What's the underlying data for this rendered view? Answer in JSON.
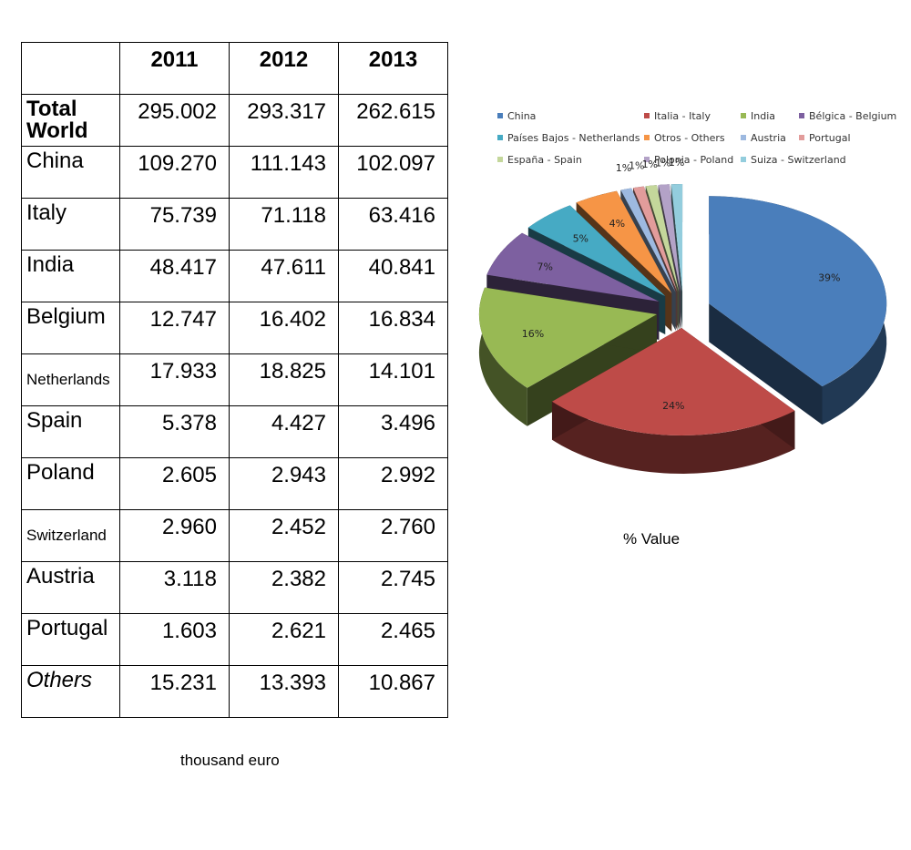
{
  "table": {
    "years": [
      "2011",
      "2012",
      "2013"
    ],
    "rows": [
      {
        "country": "Total World",
        "values": [
          "295.002",
          "293.317",
          "262.615"
        ],
        "style": "bold"
      },
      {
        "country": "China",
        "values": [
          "109.270",
          "111.143",
          "102.097"
        ],
        "style": "normal"
      },
      {
        "country": "Italy",
        "values": [
          "75.739",
          "71.118",
          "63.416"
        ],
        "style": "normal"
      },
      {
        "country": "India",
        "values": [
          "48.417",
          "47.611",
          "40.841"
        ],
        "style": "normal"
      },
      {
        "country": "Belgium",
        "values": [
          "12.747",
          "16.402",
          "16.834"
        ],
        "style": "normal"
      },
      {
        "country": "Netherlands",
        "values": [
          "17.933",
          "18.825",
          "14.101"
        ],
        "style": "small"
      },
      {
        "country": "Spain",
        "values": [
          "5.378",
          "4.427",
          "3.496"
        ],
        "style": "normal"
      },
      {
        "country": "Poland",
        "values": [
          "2.605",
          "2.943",
          "2.992"
        ],
        "style": "normal"
      },
      {
        "country": "Switzerland",
        "values": [
          "2.960",
          "2.452",
          "2.760"
        ],
        "style": "small"
      },
      {
        "country": "Austria",
        "values": [
          "3.118",
          "2.382",
          "2.745"
        ],
        "style": "normal"
      },
      {
        "country": "Portugal",
        "values": [
          "1.603",
          "2.621",
          "2.465"
        ],
        "style": "normal"
      },
      {
        "country": "Others",
        "values": [
          "15.231",
          "13.393",
          "10.867"
        ],
        "style": "italic"
      }
    ],
    "unit_note": "thousand euro"
  },
  "chart_data": {
    "type": "pie",
    "caption": "% Value",
    "legend_position": "top",
    "slices": [
      {
        "label": "China",
        "value": 39,
        "data_label": "39%",
        "color": "#4a7ebb"
      },
      {
        "label": "Italia - Italy",
        "value": 24,
        "data_label": "24%",
        "color": "#be4b48"
      },
      {
        "label": "India",
        "value": 16,
        "data_label": "16%",
        "color": "#98b954"
      },
      {
        "label": "Bélgica - Belgium",
        "value": 7,
        "data_label": "7%",
        "color": "#7d60a0"
      },
      {
        "label": "Países Bajos - Netherlands",
        "value": 5,
        "data_label": "5%",
        "color": "#46aac4"
      },
      {
        "label": "Otros - Others",
        "value": 4,
        "data_label": "4%",
        "color": "#f69546"
      },
      {
        "label": "Austria",
        "value": 1,
        "data_label": "1%",
        "color": "#9db9e0"
      },
      {
        "label": "Portugal",
        "value": 1,
        "data_label": "1%",
        "color": "#e29c9b"
      },
      {
        "label": "España - Spain",
        "value": 1,
        "data_label": "1%",
        "color": "#c4d79b"
      },
      {
        "label": "Polonia - Poland",
        "value": 1,
        "data_label": "1%",
        "color": "#b3a2c7"
      },
      {
        "label": "Suiza - Switzerland",
        "value": 1,
        "data_label": "1%",
        "color": "#93cddd"
      }
    ]
  }
}
